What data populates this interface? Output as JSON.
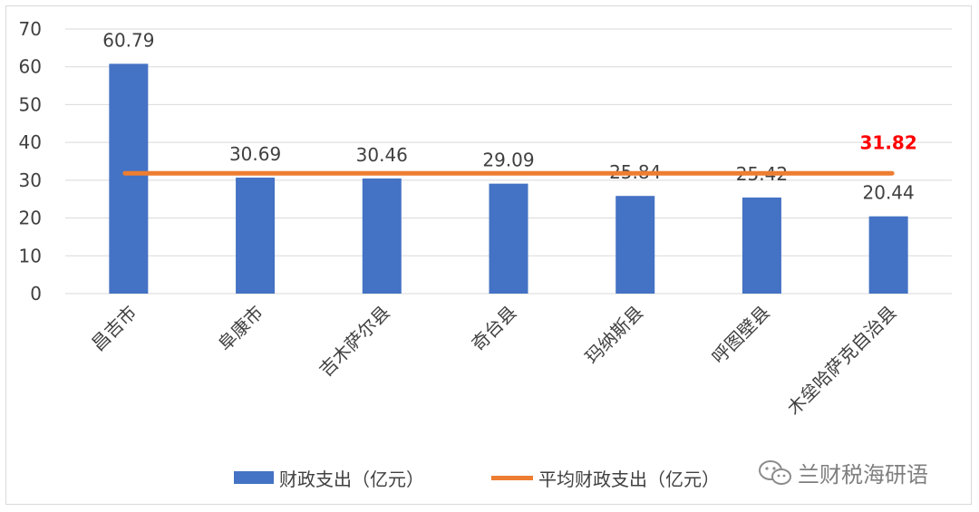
{
  "chart_data": {
    "type": "bar",
    "categories": [
      "昌吉市",
      "阜康市",
      "吉木萨尔县",
      "奇台县",
      "玛纳斯县",
      "呼图壁县",
      "木垒哈萨克自治县"
    ],
    "series": [
      {
        "name": "财政支出（亿元）",
        "type": "bar",
        "values": [
          60.79,
          30.69,
          30.46,
          29.09,
          25.84,
          25.42,
          20.44
        ],
        "color": "#4472c4"
      },
      {
        "name": "平均财政支出（亿元）",
        "type": "line",
        "value": 31.82,
        "label": "31.82",
        "color": "#ed7d31",
        "label_color": "#ff0000"
      }
    ],
    "data_labels": [
      "60.79",
      "30.69",
      "30.46",
      "29.09",
      "25.84",
      "25.42",
      "20.44"
    ],
    "ylim": [
      0,
      70
    ],
    "yticks": [
      "0",
      "10",
      "20",
      "30",
      "40",
      "50",
      "60",
      "70"
    ],
    "grid": true,
    "legend_placement": "bottom"
  },
  "legend": {
    "bar_label": "财政支出（亿元）",
    "line_label": "平均财政支出（亿元）"
  },
  "watermark": {
    "text": "兰财税海研语",
    "icon": "wechat-icon"
  }
}
